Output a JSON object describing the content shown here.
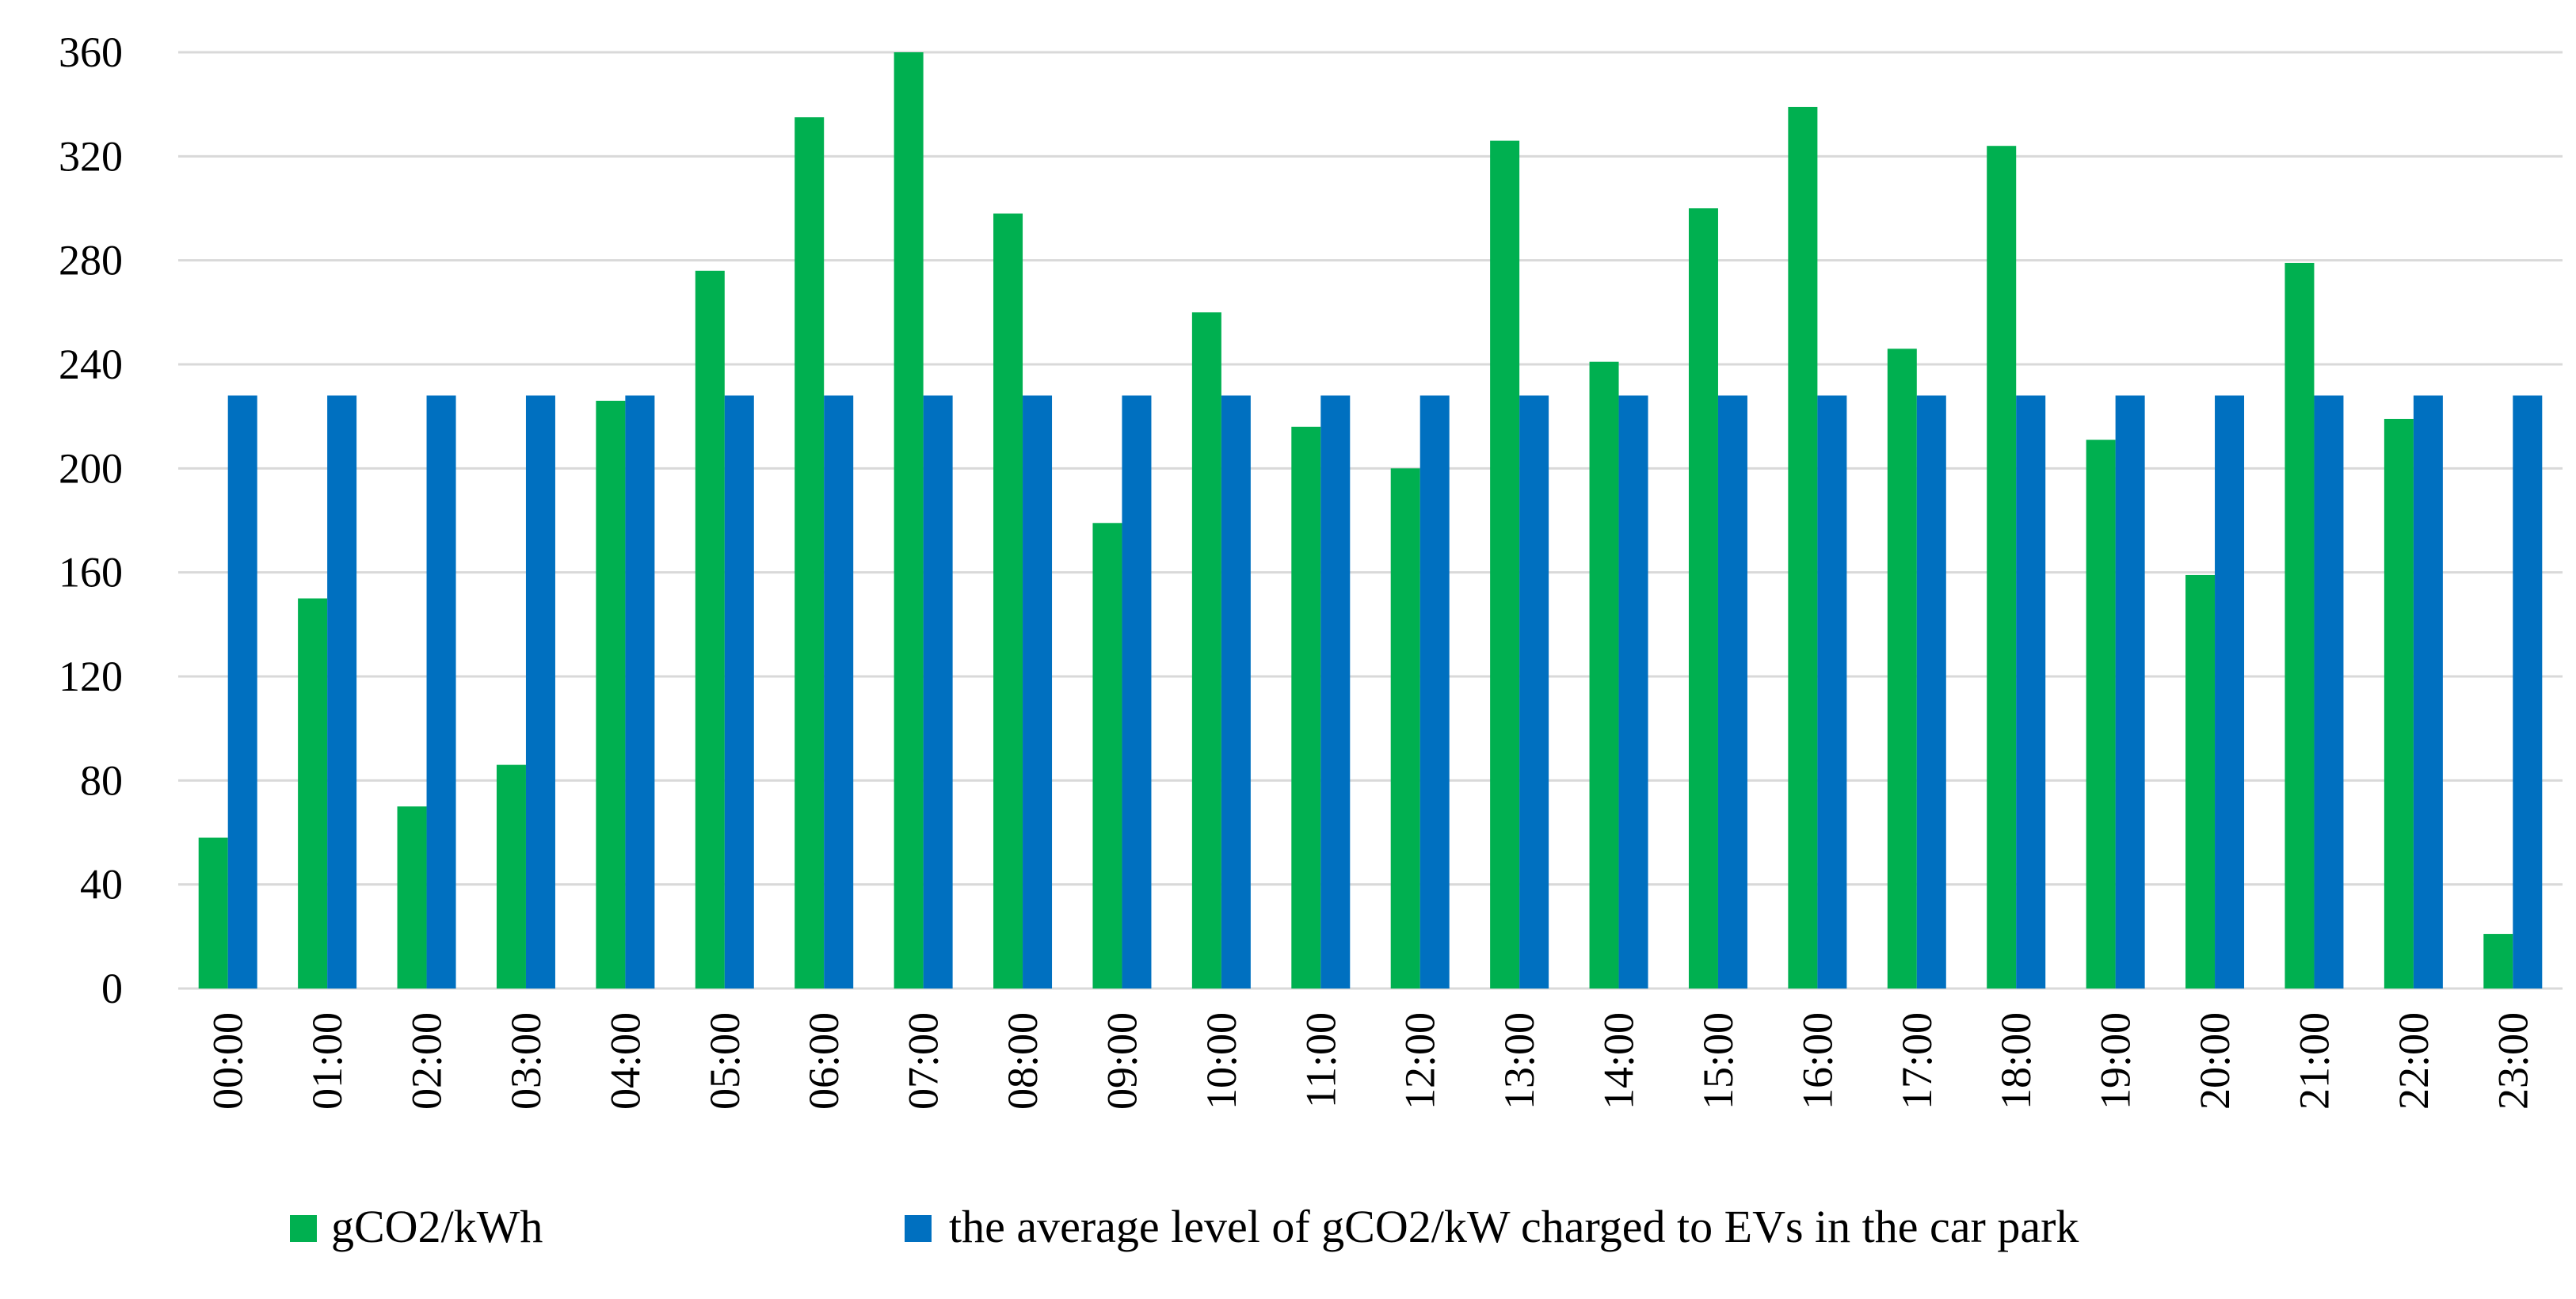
{
  "chart_data": {
    "type": "bar",
    "title": "",
    "xlabel": "",
    "ylabel": "",
    "ylim": [
      0,
      360
    ],
    "yticks": [
      0,
      40,
      80,
      120,
      160,
      200,
      240,
      280,
      320,
      360
    ],
    "ytick_labels": [
      "0",
      "40",
      "80",
      "120",
      "160",
      "200",
      "240",
      "280",
      "320",
      "360"
    ],
    "grid": true,
    "legend_position": "bottom",
    "categories": [
      "00:00",
      "01:00",
      "02:00",
      "03:00",
      "04:00",
      "05:00",
      "06:00",
      "07:00",
      "08:00",
      "09:00",
      "10:00",
      "11:00",
      "12:00",
      "13:00",
      "14:00",
      "15:00",
      "16:00",
      "17:00",
      "18:00",
      "19:00",
      "20:00",
      "21:00",
      "22:00",
      "23:00"
    ],
    "series": [
      {
        "name": "gCO2/kWh",
        "color": "#00b050",
        "values": [
          58,
          150,
          70,
          86,
          226,
          276,
          335,
          360,
          298,
          179,
          260,
          216,
          200,
          326,
          241,
          300,
          339,
          246,
          324,
          211,
          159,
          279,
          219,
          21
        ]
      },
      {
        "name": "the average level of gCO2/kW charged to EVs in the car park",
        "color": "#0070c0",
        "values": [
          228,
          228,
          228,
          228,
          228,
          228,
          228,
          228,
          228,
          228,
          228,
          228,
          228,
          228,
          228,
          228,
          228,
          228,
          228,
          228,
          228,
          228,
          228,
          228
        ]
      }
    ]
  }
}
